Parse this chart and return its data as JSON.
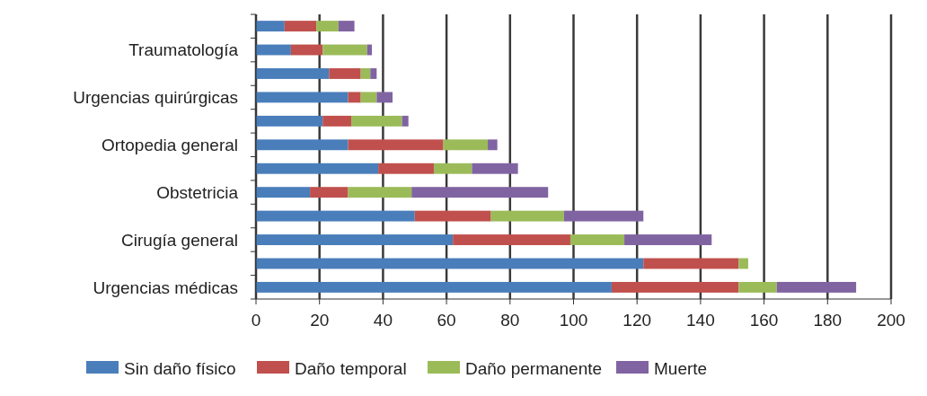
{
  "chart_data": {
    "type": "bar",
    "orientation": "horizontal",
    "stacked": true,
    "categories": [
      null,
      "Traumatología",
      null,
      "Urgencias quirúrgicas",
      null,
      "Ortopedia general",
      null,
      "Obstetricia",
      null,
      "Cirugía general",
      null,
      "Urgencias médicas"
    ],
    "series": [
      {
        "name": "Sin daño físico",
        "color": "#4a7ebb",
        "values": [
          9,
          11,
          23,
          29,
          21,
          29,
          38.5,
          17,
          50,
          62,
          122,
          112
        ]
      },
      {
        "name": "Daño temporal",
        "color": "#c0504d",
        "values": [
          10,
          10,
          10,
          4,
          9,
          30,
          17.5,
          12,
          24,
          37,
          30,
          40
        ]
      },
      {
        "name": "Daño permanente",
        "color": "#9bbb59",
        "values": [
          7,
          14,
          3,
          5,
          16,
          14,
          12,
          20,
          23,
          17,
          3,
          12
        ]
      },
      {
        "name": "Muerte",
        "color": "#8064a2",
        "values": [
          5,
          1.5,
          2,
          5,
          2,
          3,
          14.5,
          43,
          25,
          27.5,
          0,
          25
        ]
      }
    ],
    "xlim": [
      0,
      200
    ],
    "xticks": [
      0,
      20,
      40,
      60,
      80,
      100,
      120,
      140,
      160,
      180,
      200
    ],
    "grid": "x",
    "legend": "bottom"
  }
}
